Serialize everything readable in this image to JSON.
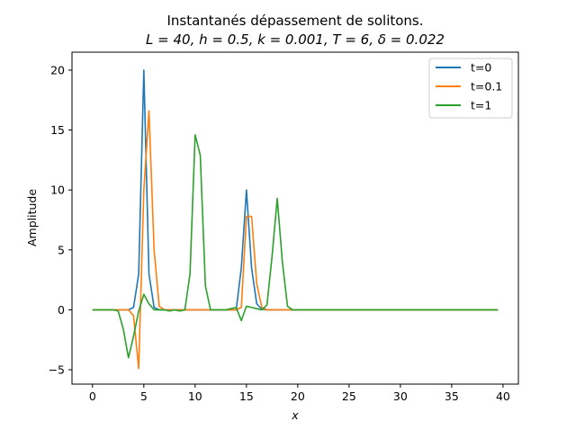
{
  "chart_data": {
    "type": "line",
    "title": "Instantanés dépassement de solitons.",
    "subtitle": "L = 40, h = 0.5, k = 0.001, T = 6, δ = 0.022",
    "xlabel": "x",
    "ylabel": "Amplitude",
    "xlim": [
      -2,
      41.5
    ],
    "ylim": [
      -6.2,
      21.5
    ],
    "xticks": [
      0,
      5,
      10,
      15,
      20,
      25,
      30,
      35,
      40
    ],
    "yticks": [
      -5,
      0,
      5,
      10,
      15,
      20
    ],
    "grid": false,
    "legend_position": "top-right",
    "series": [
      {
        "name": "t=0",
        "color": "#1f77b4",
        "x": [
          0,
          3.5,
          4.0,
          4.5,
          5.0,
          5.5,
          6.0,
          6.5,
          14.0,
          14.5,
          15.0,
          15.5,
          16.0,
          16.5,
          17.0,
          39.5
        ],
        "y": [
          0,
          0,
          0.2,
          3.0,
          20.0,
          3.0,
          0.2,
          0,
          0,
          3.5,
          10.0,
          3.5,
          0.5,
          0.05,
          0,
          0
        ]
      },
      {
        "name": "t=0.1",
        "color": "#ff7f0e",
        "x": [
          0,
          3.5,
          4.0,
          4.5,
          5.0,
          5.5,
          6.0,
          6.5,
          7.0,
          14.0,
          14.5,
          15.0,
          15.5,
          16.0,
          16.5,
          17.0,
          39.5
        ],
        "y": [
          0,
          0,
          -0.5,
          -4.9,
          10.0,
          16.6,
          5.0,
          0.3,
          0,
          0,
          0.2,
          7.8,
          7.8,
          2.2,
          0.2,
          0,
          0
        ]
      },
      {
        "name": "t=1",
        "color": "#2ca02c",
        "x": [
          0,
          2.0,
          2.5,
          3.0,
          3.5,
          4.0,
          4.5,
          5.0,
          5.5,
          6.0,
          6.5,
          7.0,
          7.5,
          8.0,
          8.5,
          9.0,
          9.5,
          10.0,
          10.5,
          11.0,
          11.5,
          12.0,
          13.0,
          13.5,
          14.0,
          14.5,
          15.0,
          15.5,
          16.0,
          16.5,
          17.0,
          17.5,
          18.0,
          18.5,
          19.0,
          19.5,
          20.0,
          39.5
        ],
        "y": [
          0,
          0,
          -0.1,
          -1.6,
          -4.0,
          -2.2,
          -0.1,
          1.3,
          0.5,
          0,
          0,
          0,
          -0.1,
          0,
          -0.1,
          0,
          3.0,
          14.6,
          12.9,
          2.0,
          0,
          0,
          0,
          0.1,
          0.2,
          -0.9,
          0.3,
          0.2,
          0.1,
          0,
          0.4,
          4.5,
          9.3,
          4.0,
          0.3,
          0,
          0,
          0
        ]
      }
    ]
  }
}
